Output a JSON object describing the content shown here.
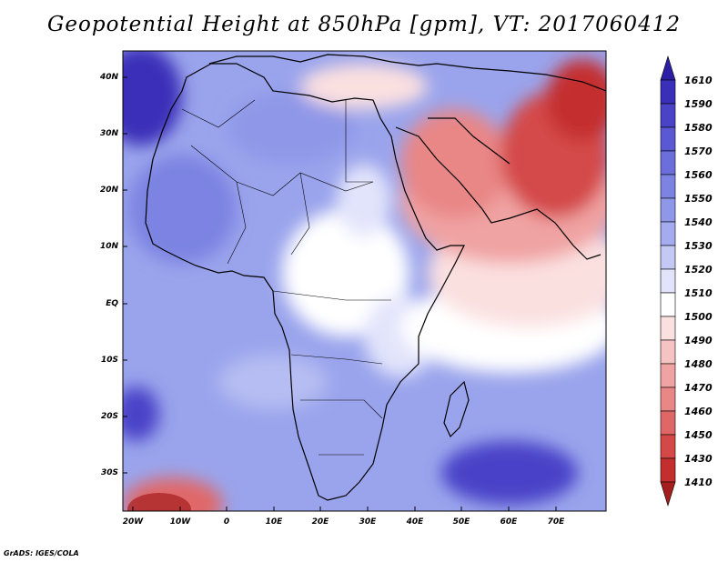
{
  "title": "Geopotential Height at 850hPa [gpm], VT: 2017060412",
  "credit": "GrADS: IGES/COLA",
  "lat_labels": [
    "40N",
    "30N",
    "20N",
    "10N",
    "EQ",
    "10S",
    "20S",
    "30S"
  ],
  "lon_labels": [
    "20W",
    "10W",
    "0",
    "10E",
    "20E",
    "30E",
    "40E",
    "50E",
    "60E",
    "70E"
  ],
  "colorbar": {
    "labels": [
      "1610",
      "1590",
      "1580",
      "1570",
      "1560",
      "1550",
      "1540",
      "1530",
      "1520",
      "1510",
      "1500",
      "1490",
      "1480",
      "1470",
      "1460",
      "1450",
      "1430",
      "1410"
    ],
    "colors": [
      "#2c1ea5",
      "#3a2fb8",
      "#4a43c8",
      "#5a58d2",
      "#6b6edb",
      "#7c83e2",
      "#8f97e8",
      "#a4abee",
      "#c3c8f4",
      "#e2e4fb",
      "#ffffff",
      "#fbe0e0",
      "#f6c3c3",
      "#f0a3a3",
      "#e98686",
      "#e06767",
      "#d44848",
      "#c42e2e",
      "#a51e1e"
    ]
  },
  "chart_data": {
    "type": "heatmap",
    "variable": "Geopotential Height",
    "level": "850hPa",
    "units": "gpm",
    "valid_time": "2017060412",
    "x_range": [
      -23,
      80
    ],
    "y_range": [
      -37,
      45
    ],
    "levels": [
      1410,
      1430,
      1450,
      1460,
      1470,
      1480,
      1490,
      1500,
      1510,
      1520,
      1530,
      1540,
      1550,
      1560,
      1570,
      1580,
      1590,
      1610
    ]
  }
}
